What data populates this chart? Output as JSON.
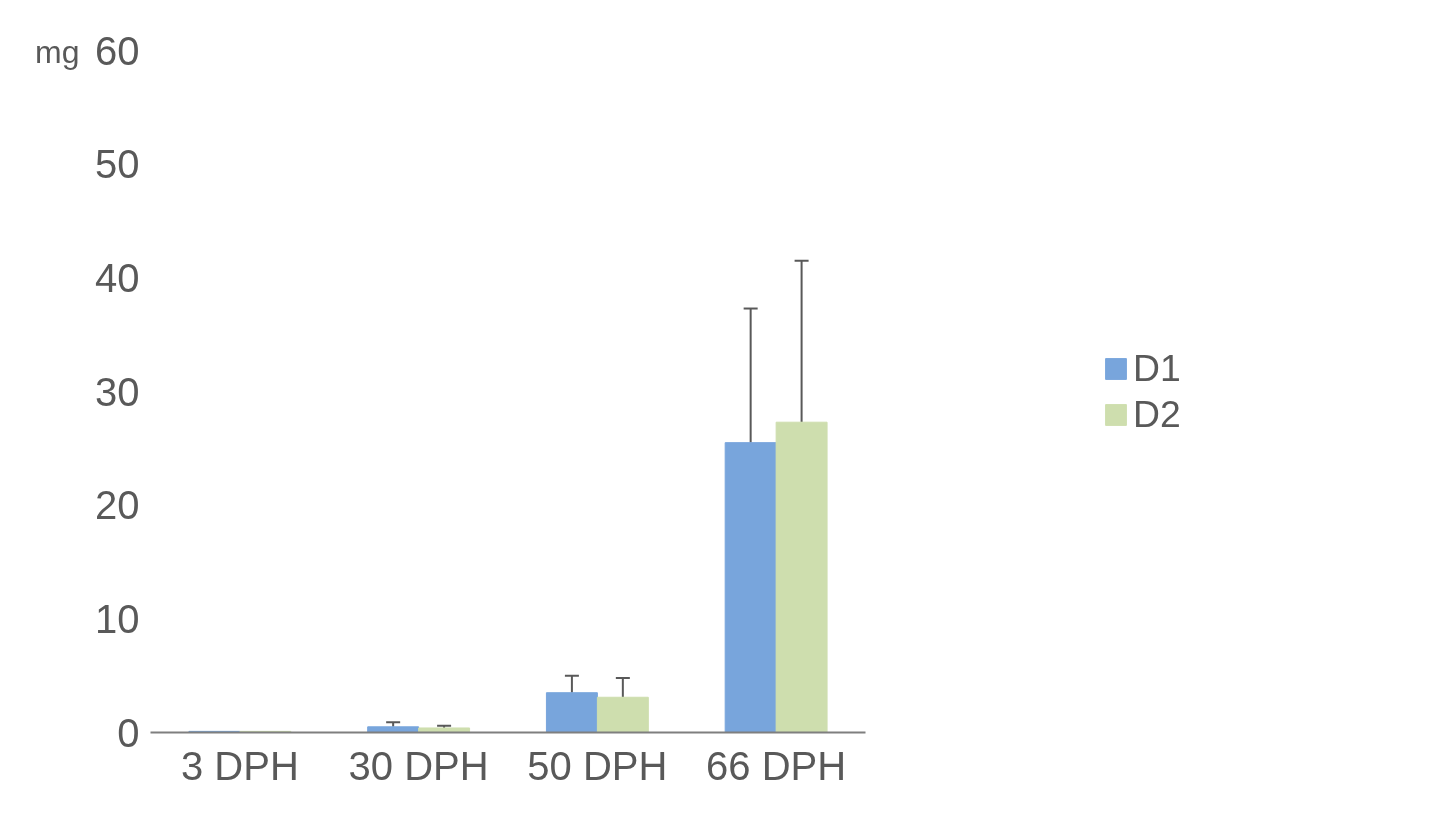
{
  "chart_data": {
    "type": "bar",
    "ylabel": "mg",
    "categories": [
      "3 DPH",
      "30 DPH",
      "50 DPH",
      "66 DPH"
    ],
    "series": [
      {
        "name": "D1",
        "color": "#78a5dc",
        "values": [
          0.1,
          0.5,
          3.5,
          25.5
        ],
        "errors": [
          null,
          0.4,
          1.5,
          11.8
        ]
      },
      {
        "name": "D2",
        "color": "#cedeae",
        "values": [
          0.1,
          0.4,
          3.1,
          27.3
        ],
        "errors": [
          null,
          0.2,
          1.7,
          14.2
        ]
      }
    ],
    "ylim": [
      0,
      60
    ],
    "yticks": [
      0,
      10,
      20,
      30,
      40,
      50,
      60
    ],
    "grid": false,
    "legend": "right"
  }
}
